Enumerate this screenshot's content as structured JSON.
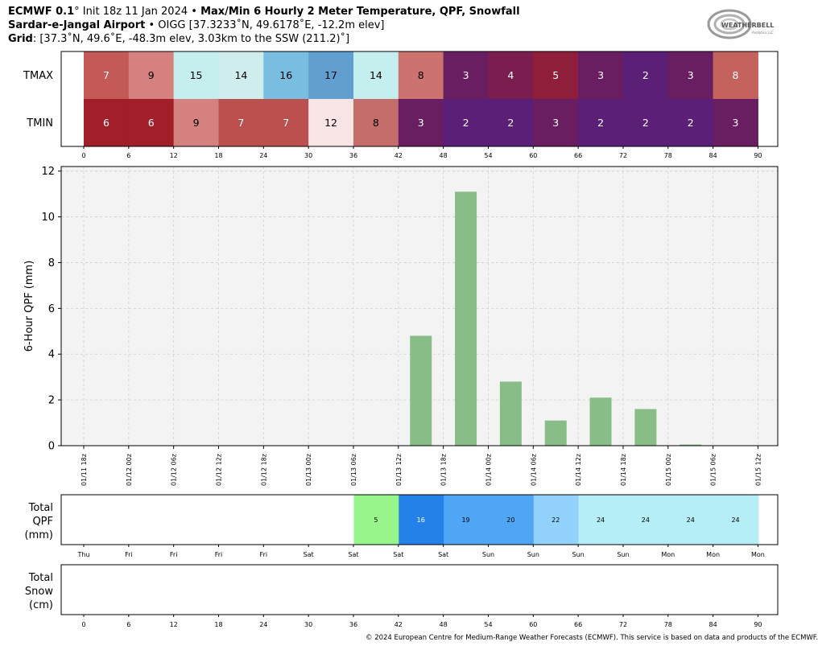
{
  "header": {
    "model": "ECMWF 0.1",
    "deg": "°",
    "init": " Init 18z 11 Jan 2024 • ",
    "title": "Max/Min 6 Hourly 2 Meter Temperature,  QPF,  Snowfall",
    "station": "Sardar-e-Jangal Airport",
    "station_info": " • OIGG [37.3233˚N, 49.6178˚E, -12.2m elev]",
    "grid_label": "Grid",
    "grid_info": ": [37.3˚N, 49.6˚E, -48.3m elev, 3.03km to the SSW (211.2)˚]"
  },
  "logo": {
    "text_main": "WEATHERBELL",
    "text_sub": "Analytics LLC"
  },
  "temp_panel": {
    "row_labels": [
      "TMAX",
      "TMIN"
    ],
    "hours": [
      "0",
      "6",
      "12",
      "18",
      "24",
      "30",
      "36",
      "42",
      "48",
      "54",
      "60",
      "66",
      "72",
      "78",
      "84",
      "90"
    ],
    "tmax": [
      7,
      9,
      15,
      14,
      16,
      17,
      14,
      8,
      3,
      4,
      5,
      3,
      2,
      3,
      8
    ],
    "tmin": [
      6,
      6,
      9,
      7,
      7,
      12,
      8,
      3,
      2,
      2,
      3,
      2,
      2,
      2,
      3
    ],
    "tmax_colors": [
      "#c35a57",
      "#d58180",
      "#c5eeee",
      "#d0eded",
      "#79bde1",
      "#609fcf",
      "#c5eeee",
      "#cc726f",
      "#6a1e62",
      "#7a1e50",
      "#8e1e3a",
      "#6a1e62",
      "#5b1f78",
      "#6a1e62",
      "#c4625e"
    ],
    "tmin_colors": [
      "#a11f29",
      "#a11f29",
      "#d58180",
      "#bc504e",
      "#bc504e",
      "#f9e5e5",
      "#c56d6a",
      "#6a1e62",
      "#5b1f78",
      "#5b1f78",
      "#6a1e62",
      "#5b1f78",
      "#5b1f78",
      "#5b1f78",
      "#6a1e62"
    ],
    "tmax_text_colors": [
      "#fff",
      "#000",
      "#000",
      "#000",
      "#000",
      "#000",
      "#000",
      "#000",
      "#fff",
      "#fff",
      "#fff",
      "#fff",
      "#fff",
      "#fff",
      "#fff"
    ],
    "tmin_text_colors": [
      "#fff",
      "#fff",
      "#000",
      "#fff",
      "#fff",
      "#000",
      "#000",
      "#fff",
      "#fff",
      "#fff",
      "#fff",
      "#fff",
      "#fff",
      "#fff",
      "#fff"
    ]
  },
  "chart_data": {
    "type": "bar",
    "ylabel": "6-Hour QPF (mm)",
    "ylim": [
      0,
      12.2
    ],
    "yticks": [
      0,
      2,
      4,
      6,
      8,
      10,
      12
    ],
    "grid": true,
    "bar_color": "#88bd88",
    "categories": [
      "01/11 18z",
      "01/12 00z",
      "01/12 06z",
      "01/12 12z",
      "01/12 18z",
      "01/13 00z",
      "01/13 06z",
      "01/13 12z",
      "01/13 18z",
      "01/14 00z",
      "01/14 06z",
      "01/14 12z",
      "01/14 18z",
      "01/15 00z",
      "01/15 06z",
      "01/15 12z"
    ],
    "values": [
      0,
      0,
      0,
      0,
      0,
      0,
      0,
      4.8,
      11.1,
      2.8,
      1.1,
      2.1,
      1.6,
      0.05,
      0,
      0
    ]
  },
  "total_qpf": {
    "label": "Total\nQPF\n(mm)",
    "label_lines": [
      "Total",
      "QPF",
      "(mm)"
    ],
    "days": [
      "Thu",
      "Fri",
      "Fri",
      "Fri",
      "Fri",
      "Sat",
      "Sat",
      "Sat",
      "Sat",
      "Sun",
      "Sun",
      "Sun",
      "Sun",
      "Mon",
      "Mon",
      "Mon"
    ],
    "values": [
      "",
      "",
      "",
      "",
      "",
      "",
      "",
      "5",
      "16",
      "19",
      "20",
      "22",
      "24",
      "24",
      "24",
      "24"
    ],
    "colors": [
      "",
      "",
      "",
      "",
      "",
      "",
      "",
      "#98f58c",
      "#2581ea",
      "#4ea6f5",
      "#4ea6f5",
      "#93d2fc",
      "#b6eef8",
      "#b6eef8",
      "#b6eef8",
      "#b6eef8"
    ],
    "text_colors": [
      "",
      "",
      "",
      "",
      "",
      "",
      "",
      "#000",
      "#fff",
      "#000",
      "#000",
      "#000",
      "#000",
      "#000",
      "#000",
      "#000"
    ]
  },
  "total_snow": {
    "label_lines": [
      "Total",
      "Snow",
      "(cm)"
    ],
    "hours": [
      "0",
      "6",
      "12",
      "18",
      "24",
      "30",
      "36",
      "42",
      "48",
      "54",
      "60",
      "66",
      "72",
      "78",
      "84",
      "90"
    ]
  },
  "footer": "© 2024 European Centre for Medium-Range Weather Forecasts (ECMWF). This service is based on data and products of the ECMWF."
}
